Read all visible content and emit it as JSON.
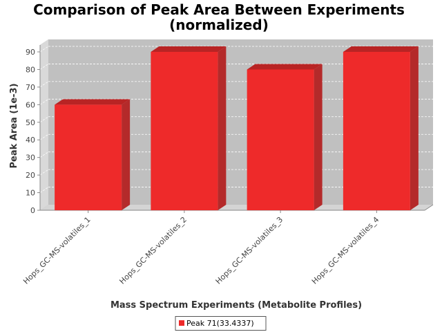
{
  "chart_data": {
    "type": "bar",
    "title": "Comparison of Peak Area Between Experiments",
    "subtitle": "(normalized)",
    "xlabel": "Mass Spectrum Experiments (Metabolite Profiles)",
    "ylabel": "Peak Area (1e-3)",
    "categories": [
      "Hops_GC-MS-volatiles_1",
      "Hops_GC-MS-volatiles_2",
      "Hops_GC-MS-volatiles_3",
      "Hops_GC-MS-volatiles_4"
    ],
    "series": [
      {
        "name": "Peak 71(33.4337)",
        "values": [
          60,
          90,
          80,
          90
        ],
        "color": "#ee2a2a"
      }
    ],
    "ylim": [
      0,
      90
    ],
    "yticks": [
      0,
      10,
      20,
      30,
      40,
      50,
      60,
      70,
      80,
      90
    ],
    "grid": true,
    "legend_position": "bottom",
    "colors": {
      "plot_background": "#c0c0c0",
      "bar_face": "#ee2a2a",
      "bar_top": "#b82424",
      "bar_side": "#b42a2a"
    }
  }
}
